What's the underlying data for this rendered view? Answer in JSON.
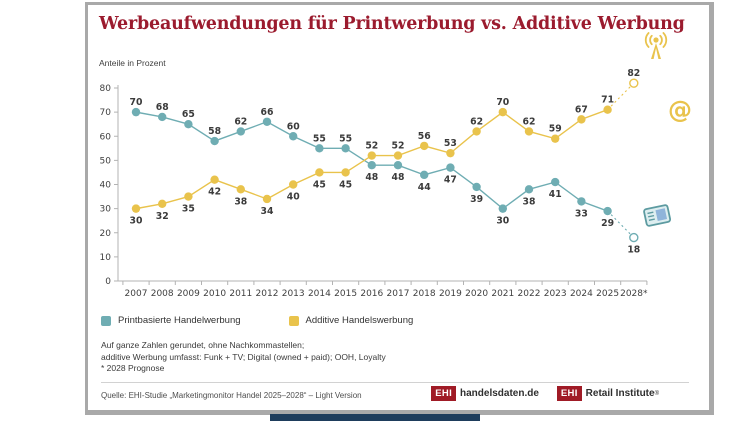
{
  "card": {
    "title": "Werbeaufwendungen für Printwerbung vs. Additive Werbung"
  },
  "chart_data": {
    "type": "line",
    "title": "Werbeaufwendungen für Printwerbung vs. Additive Werbung",
    "xlabel": "",
    "ylabel": "Anteile in Prozent",
    "ylim": [
      0,
      80
    ],
    "yticks": [
      0,
      10,
      20,
      30,
      40,
      50,
      60,
      70,
      80
    ],
    "grid": false,
    "legend_position": "bottom",
    "categories": [
      "2007",
      "2008",
      "2009",
      "2010",
      "2011",
      "2012",
      "2013",
      "2014",
      "2015",
      "2016",
      "2017",
      "2018",
      "2019",
      "2020",
      "2021",
      "2022",
      "2023",
      "2024",
      "2025",
      "2028*"
    ],
    "series": [
      {
        "name": "Printbasierte Handelwerbung",
        "color": "#6fadb3",
        "values": [
          70,
          68,
          65,
          58,
          62,
          66,
          60,
          55,
          55,
          48,
          48,
          44,
          47,
          39,
          30,
          38,
          41,
          33,
          29,
          18
        ]
      },
      {
        "name": "Additive Handelswerbung",
        "color": "#e9c34c",
        "values": [
          30,
          32,
          35,
          42,
          38,
          34,
          40,
          45,
          45,
          52,
          52,
          56,
          53,
          62,
          70,
          62,
          59,
          67,
          71,
          82
        ]
      }
    ],
    "annotations": {
      "forecast_index": 19,
      "forecast_note": "* 2028 Prognose",
      "last_point_style": "open circle with dashed connector"
    }
  },
  "legend": {
    "items": [
      {
        "label": "Printbasierte Handelwerbung",
        "color": "#6fadb3"
      },
      {
        "label": "Additive Handelswerbung",
        "color": "#e9c34c"
      }
    ]
  },
  "notes": [
    "Auf ganze Zahlen gerundet, ohne Nachkommastellen;",
    "additive Werbung umfasst: Funk + TV; Digital (owned + paid); OOH, Loyalty",
    "* 2028 Prognose"
  ],
  "source": {
    "text": "Quelle: EHI-Studie „Marketingmonitor Handel 2025–2028“ – Light Version"
  },
  "logos": [
    {
      "box": "EHI",
      "label": "handelsdaten.de",
      "mark": ""
    },
    {
      "box": "EHI",
      "label": "Retail Institute",
      "mark": "®"
    }
  ],
  "icons": {
    "broadcast": "broadcast-icon",
    "at": "at-icon",
    "newspaper": "newspaper-icon"
  },
  "colors": {
    "title_red": "#9b1b2e",
    "print_teal": "#6fadb3",
    "additive_yellow": "#e9c34c",
    "logo_red": "#a01b26",
    "border_gray": "#a9a9a9",
    "bottom_bar_navy": "#1e3d5c"
  }
}
